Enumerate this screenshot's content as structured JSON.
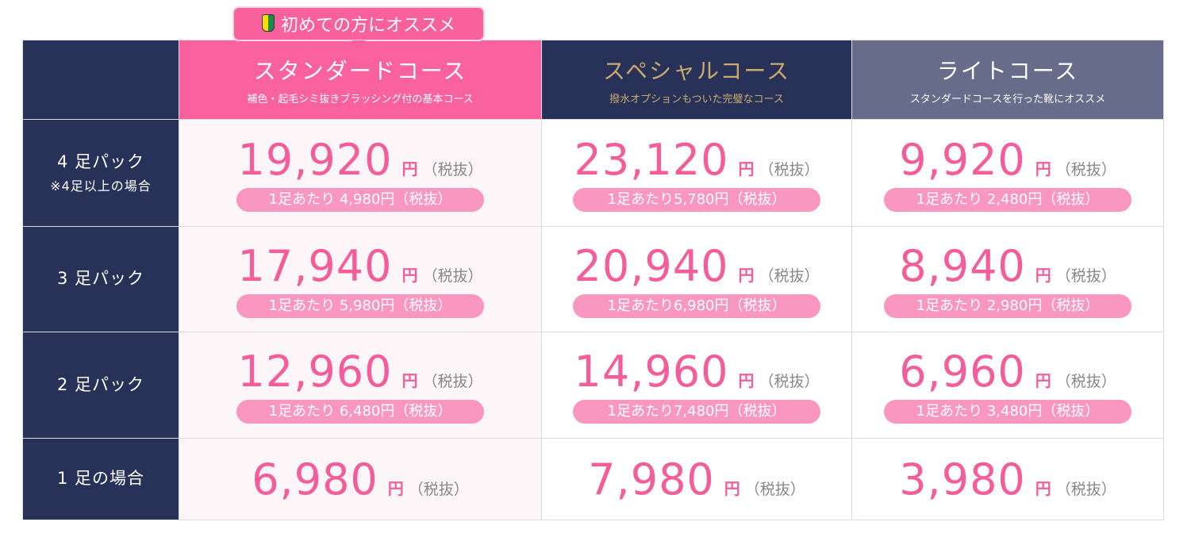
{
  "badge": {
    "label": "初めての方にオススメ",
    "icon": "beginner-mark-icon"
  },
  "courses": [
    {
      "name": "スタンダードコース",
      "desc": "補色・起毛シミ抜きブラッシング付の基本コース"
    },
    {
      "name": "スペシャルコース",
      "desc": "撥水オプションもついた完璧なコース"
    },
    {
      "name": "ライトコース",
      "desc": "スタンダードコースを行った靴にオススメ"
    }
  ],
  "yen": "円",
  "tax": "（税抜）",
  "rows": [
    {
      "label": "4 足パック",
      "note": "※4足以上の場合",
      "prices": [
        {
          "total": "19,920",
          "per": "1足あたり 4,980円（税抜）"
        },
        {
          "total": "23,120",
          "per": "1足あたり5,780円（税抜）"
        },
        {
          "total": "9,920",
          "per": "1足あたり 2,480円（税抜）"
        }
      ]
    },
    {
      "label": "3 足パック",
      "prices": [
        {
          "total": "17,940",
          "per": "1足あたり 5,980円（税抜）"
        },
        {
          "total": "20,940",
          "per": "1足あたり6,980円（税抜）"
        },
        {
          "total": "8,940",
          "per": "1足あたり 2,980円（税抜）"
        }
      ]
    },
    {
      "label": "2 足パック",
      "prices": [
        {
          "total": "12,960",
          "per": "1足あたり 6,480円（税抜）"
        },
        {
          "total": "14,960",
          "per": "1足あたり7,480円（税抜）"
        },
        {
          "total": "6,960",
          "per": "1足あたり 3,480円（税抜）"
        }
      ]
    },
    {
      "label": "1 足の場合",
      "prices": [
        {
          "total": "6,980"
        },
        {
          "total": "7,980"
        },
        {
          "total": "3,980"
        }
      ]
    }
  ],
  "colors": {
    "navy": "#283158",
    "pink": "#f9629e",
    "slate": "#666c8a",
    "gold": "#cbab6d",
    "price": "#f45d99",
    "pill": "#fa97c1"
  }
}
